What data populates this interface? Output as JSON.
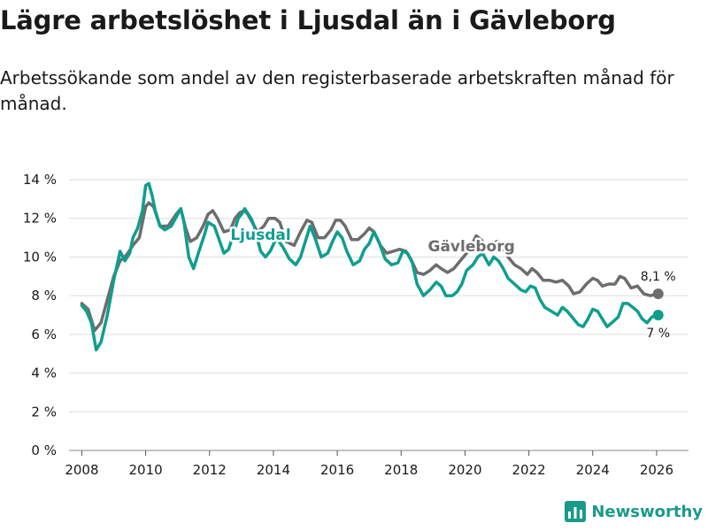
{
  "title": "Lägre arbetslöshet i Ljusdal än i Gävleborg",
  "subtitle": "Arbetssökande som andel av den registerbaserade arbetskraften månad för månad.",
  "brand": {
    "name": "Newsworthy",
    "logo_icon": "bar-chart-icon"
  },
  "colors": {
    "ljusdal": "#0f9e8e",
    "gavleborg": "#6d6d6d",
    "grid": "#dddddd",
    "text": "#1a1a1a",
    "axis": "#333333"
  },
  "chart_data": {
    "type": "line",
    "title": "Lägre arbetslöshet i Ljusdal än i Gävleborg",
    "xlabel": "",
    "ylabel": "",
    "xlim": [
      2007.6,
      2027.0
    ],
    "ylim": [
      0,
      14
    ],
    "grid": true,
    "x_ticks": [
      2008,
      2010,
      2012,
      2014,
      2016,
      2018,
      2020,
      2022,
      2024,
      2026
    ],
    "x_tick_labels": [
      "2008",
      "2010",
      "2012",
      "2014",
      "2016",
      "2018",
      "2020",
      "2022",
      "2024",
      "2026"
    ],
    "y_ticks": [
      0,
      2,
      4,
      6,
      8,
      10,
      12,
      14
    ],
    "y_tick_labels": [
      "0 %",
      "2 %",
      "4 %",
      "6 %",
      "8 %",
      "10 %",
      "12 %",
      "14 %"
    ],
    "series": [
      {
        "name": "Gävleborg",
        "end_label": "8,1 %",
        "points": [
          [
            2008.0,
            7.6
          ],
          [
            2008.2,
            7.3
          ],
          [
            2008.4,
            6.2
          ],
          [
            2008.6,
            6.6
          ],
          [
            2008.8,
            7.8
          ],
          [
            2009.0,
            9.0
          ],
          [
            2009.2,
            9.8
          ],
          [
            2009.4,
            10.1
          ],
          [
            2009.6,
            10.6
          ],
          [
            2009.8,
            11.0
          ],
          [
            2010.0,
            12.6
          ],
          [
            2010.1,
            12.8
          ],
          [
            2010.25,
            12.6
          ],
          [
            2010.45,
            11.6
          ],
          [
            2010.7,
            11.6
          ],
          [
            2010.95,
            12.2
          ],
          [
            2011.1,
            12.5
          ],
          [
            2011.25,
            11.5
          ],
          [
            2011.4,
            10.8
          ],
          [
            2011.6,
            11.0
          ],
          [
            2011.8,
            11.6
          ],
          [
            2011.95,
            12.2
          ],
          [
            2012.1,
            12.4
          ],
          [
            2012.25,
            12.0
          ],
          [
            2012.45,
            11.3
          ],
          [
            2012.65,
            11.4
          ],
          [
            2012.8,
            12.0
          ],
          [
            2012.95,
            12.3
          ],
          [
            2013.1,
            12.4
          ],
          [
            2013.2,
            12.2
          ],
          [
            2013.5,
            11.3
          ],
          [
            2013.7,
            11.6
          ],
          [
            2013.85,
            12.0
          ],
          [
            2014.05,
            12.0
          ],
          [
            2014.2,
            11.8
          ],
          [
            2014.4,
            10.8
          ],
          [
            2014.65,
            10.6
          ],
          [
            2014.85,
            11.3
          ],
          [
            2015.05,
            11.9
          ],
          [
            2015.2,
            11.8
          ],
          [
            2015.4,
            11.0
          ],
          [
            2015.6,
            11.0
          ],
          [
            2015.8,
            11.4
          ],
          [
            2015.95,
            11.9
          ],
          [
            2016.1,
            11.9
          ],
          [
            2016.25,
            11.6
          ],
          [
            2016.45,
            10.9
          ],
          [
            2016.65,
            10.9
          ],
          [
            2016.85,
            11.2
          ],
          [
            2017.0,
            11.5
          ],
          [
            2017.15,
            11.3
          ],
          [
            2017.35,
            10.6
          ],
          [
            2017.55,
            10.2
          ],
          [
            2017.75,
            10.3
          ],
          [
            2017.95,
            10.4
          ],
          [
            2018.15,
            10.3
          ],
          [
            2018.3,
            9.9
          ],
          [
            2018.5,
            9.2
          ],
          [
            2018.7,
            9.1
          ],
          [
            2018.9,
            9.3
          ],
          [
            2019.1,
            9.6
          ],
          [
            2019.25,
            9.4
          ],
          [
            2019.45,
            9.2
          ],
          [
            2019.65,
            9.4
          ],
          [
            2019.85,
            9.8
          ],
          [
            2020.05,
            10.2
          ],
          [
            2020.2,
            10.6
          ],
          [
            2020.35,
            11.1
          ],
          [
            2020.5,
            10.9
          ],
          [
            2020.7,
            10.5
          ],
          [
            2020.85,
            10.7
          ],
          [
            2021.0,
            10.8
          ],
          [
            2021.15,
            10.6
          ],
          [
            2021.35,
            10.0
          ],
          [
            2021.55,
            9.6
          ],
          [
            2021.75,
            9.4
          ],
          [
            2021.95,
            9.1
          ],
          [
            2022.1,
            9.4
          ],
          [
            2022.25,
            9.2
          ],
          [
            2022.45,
            8.8
          ],
          [
            2022.65,
            8.8
          ],
          [
            2022.85,
            8.7
          ],
          [
            2023.05,
            8.8
          ],
          [
            2023.25,
            8.5
          ],
          [
            2023.4,
            8.1
          ],
          [
            2023.6,
            8.2
          ],
          [
            2023.8,
            8.6
          ],
          [
            2024.0,
            8.9
          ],
          [
            2024.15,
            8.8
          ],
          [
            2024.3,
            8.5
          ],
          [
            2024.5,
            8.6
          ],
          [
            2024.7,
            8.6
          ],
          [
            2024.85,
            9.0
          ],
          [
            2025.0,
            8.9
          ],
          [
            2025.2,
            8.4
          ],
          [
            2025.4,
            8.5
          ],
          [
            2025.6,
            8.1
          ],
          [
            2025.8,
            8.0
          ],
          [
            2026.05,
            8.1
          ]
        ]
      },
      {
        "name": "Ljusdal",
        "end_label": "7 %",
        "points": [
          [
            2008.0,
            7.5
          ],
          [
            2008.15,
            7.2
          ],
          [
            2008.3,
            6.6
          ],
          [
            2008.45,
            5.2
          ],
          [
            2008.6,
            5.6
          ],
          [
            2008.8,
            7.0
          ],
          [
            2009.0,
            8.8
          ],
          [
            2009.2,
            10.3
          ],
          [
            2009.35,
            9.8
          ],
          [
            2009.5,
            10.2
          ],
          [
            2009.6,
            11.0
          ],
          [
            2009.75,
            11.5
          ],
          [
            2009.9,
            12.4
          ],
          [
            2010.0,
            13.7
          ],
          [
            2010.1,
            13.8
          ],
          [
            2010.2,
            13.2
          ],
          [
            2010.3,
            12.4
          ],
          [
            2010.45,
            11.6
          ],
          [
            2010.6,
            11.4
          ],
          [
            2010.8,
            11.6
          ],
          [
            2011.0,
            12.2
          ],
          [
            2011.1,
            12.5
          ],
          [
            2011.2,
            11.8
          ],
          [
            2011.35,
            10.0
          ],
          [
            2011.5,
            9.4
          ],
          [
            2011.65,
            10.2
          ],
          [
            2011.85,
            11.2
          ],
          [
            2011.95,
            11.8
          ],
          [
            2012.15,
            11.6
          ],
          [
            2012.3,
            10.9
          ],
          [
            2012.45,
            10.2
          ],
          [
            2012.6,
            10.4
          ],
          [
            2012.75,
            11.2
          ],
          [
            2012.9,
            12.0
          ],
          [
            2013.0,
            12.2
          ],
          [
            2013.1,
            12.5
          ],
          [
            2013.3,
            12.0
          ],
          [
            2013.4,
            11.6
          ],
          [
            2013.6,
            10.3
          ],
          [
            2013.75,
            10.0
          ],
          [
            2013.9,
            10.3
          ],
          [
            2014.1,
            11.0
          ],
          [
            2014.3,
            10.5
          ],
          [
            2014.5,
            9.9
          ],
          [
            2014.7,
            9.6
          ],
          [
            2014.85,
            10.0
          ],
          [
            2015.0,
            10.8
          ],
          [
            2015.15,
            11.6
          ],
          [
            2015.3,
            11.0
          ],
          [
            2015.5,
            10.0
          ],
          [
            2015.7,
            10.2
          ],
          [
            2015.85,
            10.8
          ],
          [
            2016.0,
            11.3
          ],
          [
            2016.15,
            11.0
          ],
          [
            2016.3,
            10.3
          ],
          [
            2016.5,
            9.6
          ],
          [
            2016.7,
            9.8
          ],
          [
            2016.85,
            10.4
          ],
          [
            2017.0,
            10.7
          ],
          [
            2017.15,
            11.3
          ],
          [
            2017.3,
            10.8
          ],
          [
            2017.5,
            9.9
          ],
          [
            2017.7,
            9.6
          ],
          [
            2017.9,
            9.7
          ],
          [
            2018.05,
            10.3
          ],
          [
            2018.2,
            10.2
          ],
          [
            2018.35,
            9.7
          ],
          [
            2018.5,
            8.6
          ],
          [
            2018.7,
            8.0
          ],
          [
            2018.9,
            8.3
          ],
          [
            2019.1,
            8.7
          ],
          [
            2019.25,
            8.5
          ],
          [
            2019.4,
            8.0
          ],
          [
            2019.6,
            8.0
          ],
          [
            2019.75,
            8.2
          ],
          [
            2019.9,
            8.6
          ],
          [
            2020.05,
            9.3
          ],
          [
            2020.25,
            9.6
          ],
          [
            2020.4,
            10.0
          ],
          [
            2020.55,
            10.2
          ],
          [
            2020.75,
            9.6
          ],
          [
            2020.9,
            10.0
          ],
          [
            2021.05,
            9.8
          ],
          [
            2021.2,
            9.4
          ],
          [
            2021.35,
            8.9
          ],
          [
            2021.55,
            8.6
          ],
          [
            2021.75,
            8.3
          ],
          [
            2021.9,
            8.2
          ],
          [
            2022.05,
            8.5
          ],
          [
            2022.2,
            8.4
          ],
          [
            2022.35,
            7.8
          ],
          [
            2022.5,
            7.4
          ],
          [
            2022.7,
            7.2
          ],
          [
            2022.9,
            7.0
          ],
          [
            2023.05,
            7.4
          ],
          [
            2023.2,
            7.2
          ],
          [
            2023.4,
            6.8
          ],
          [
            2023.55,
            6.5
          ],
          [
            2023.7,
            6.4
          ],
          [
            2023.85,
            6.8
          ],
          [
            2024.0,
            7.3
          ],
          [
            2024.15,
            7.2
          ],
          [
            2024.3,
            6.8
          ],
          [
            2024.45,
            6.4
          ],
          [
            2024.6,
            6.6
          ],
          [
            2024.8,
            6.9
          ],
          [
            2024.95,
            7.6
          ],
          [
            2025.1,
            7.6
          ],
          [
            2025.25,
            7.4
          ],
          [
            2025.4,
            7.2
          ],
          [
            2025.55,
            6.8
          ],
          [
            2025.7,
            6.6
          ],
          [
            2025.85,
            6.9
          ],
          [
            2026.05,
            7.0
          ]
        ]
      }
    ],
    "annotations": [
      {
        "text": "Ljusdal",
        "series": "Ljusdal",
        "x": 2013.6,
        "y": 10.9
      },
      {
        "text": "Gävleborg",
        "series": "Gävleborg",
        "x": 2020.2,
        "y": 10.3
      }
    ]
  }
}
